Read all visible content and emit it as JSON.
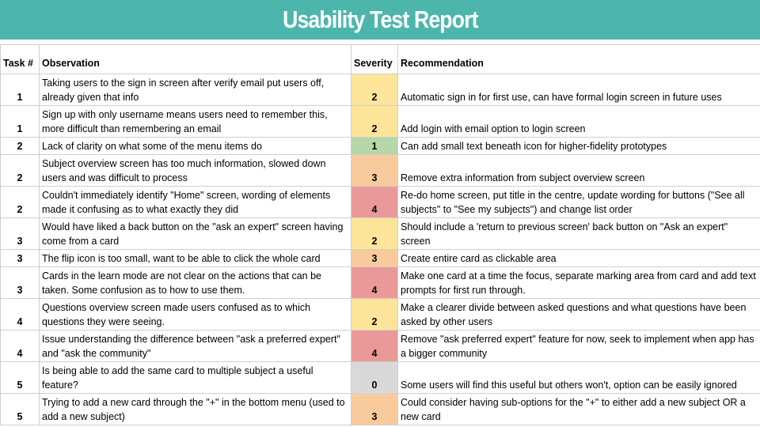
{
  "header": {
    "title": "Usability Test Report"
  },
  "table": {
    "columns": [
      "Task #",
      "Observation",
      "Severity",
      "Recommendation"
    ],
    "rows": [
      {
        "task": "1",
        "observation": "Taking users to the sign in screen after verify email put users off, already given that info",
        "severity": "2",
        "recommendation": "Automatic sign in for first use, can have formal login screen in future uses"
      },
      {
        "task": "1",
        "observation": "Sign up with only username means users need to remember this, more difficult than remembering an email",
        "severity": "2",
        "recommendation": "Add login with email option to login screen"
      },
      {
        "task": "2",
        "observation": "Lack of clarity on what some of the menu items do",
        "severity": "1",
        "recommendation": "Can add small text beneath icon for higher-fidelity prototypes"
      },
      {
        "task": "2",
        "observation": "Subject overview screen has too much information, slowed down users and was difficult to process",
        "severity": "3",
        "recommendation": "Remove extra information from subject overview screen"
      },
      {
        "task": "2",
        "observation": "Couldn't immediately identify \"Home\" screen, wording of elements made it confusing as to what exactly they did",
        "severity": "4",
        "recommendation": "Re-do home screen, put title in the centre, update wording for buttons (\"See all subjects\" to \"See my subjects\") and change list order"
      },
      {
        "task": "3",
        "observation": "Would have liked a back button on the \"ask an expert\" screen having come from a card",
        "severity": "2",
        "recommendation": "Should include a 'return to previous screen' back button on \"Ask an expert\" screen"
      },
      {
        "task": "3",
        "observation": "The flip icon is too small, want to be able to click the whole card",
        "severity": "3",
        "recommendation": "Create entire card as clickable area"
      },
      {
        "task": "3",
        "observation": "Cards in the learn mode are not clear on the actions that can be taken. Some confusion as to how to use them.",
        "severity": "4",
        "recommendation": "Make one card at a time the focus, separate marking area from card and add text prompts for first run through."
      },
      {
        "task": "4",
        "observation": "Questions overview screen made users confused as to which questions they were seeing.",
        "severity": "2",
        "recommendation": "Make a clearer divide between asked questions and what questions have been asked by other users"
      },
      {
        "task": "4",
        "observation": "Issue understanding the difference between \"ask a preferred expert\" and \"ask the community\"",
        "severity": "4",
        "recommendation": "Remove \"ask preferred expert\" feature for now, seek to implement when app has a bigger community"
      },
      {
        "task": "5",
        "observation": "Is being able to add the same card to multiple subject a useful feature?",
        "severity": "0",
        "recommendation": "Some users will find this useful but others won't, option can be easily ignored"
      },
      {
        "task": "5",
        "observation": "Trying to add a new card through the \"+\" in the bottom menu (used to add a new subject)",
        "severity": "3",
        "recommendation": "Could consider having sub-options for the \"+\" to either add a new subject OR a new card"
      }
    ]
  },
  "colors": {
    "header_bg": "#4db6ac",
    "severity_0": "#d9d9d9",
    "severity_1": "#b6d7a8",
    "severity_2": "#ffe599",
    "severity_3": "#f9cb9c",
    "severity_4": "#ea9999"
  }
}
